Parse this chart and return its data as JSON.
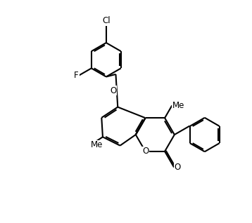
{
  "bg": "#ffffff",
  "lc": "#000000",
  "lw": 1.5,
  "fs": 8.5,
  "B": 1.0,
  "xlim": [
    -1.5,
    11.5
  ],
  "ylim": [
    -0.5,
    10.5
  ],
  "figsize": [
    3.58,
    3.18
  ],
  "dpi": 100
}
